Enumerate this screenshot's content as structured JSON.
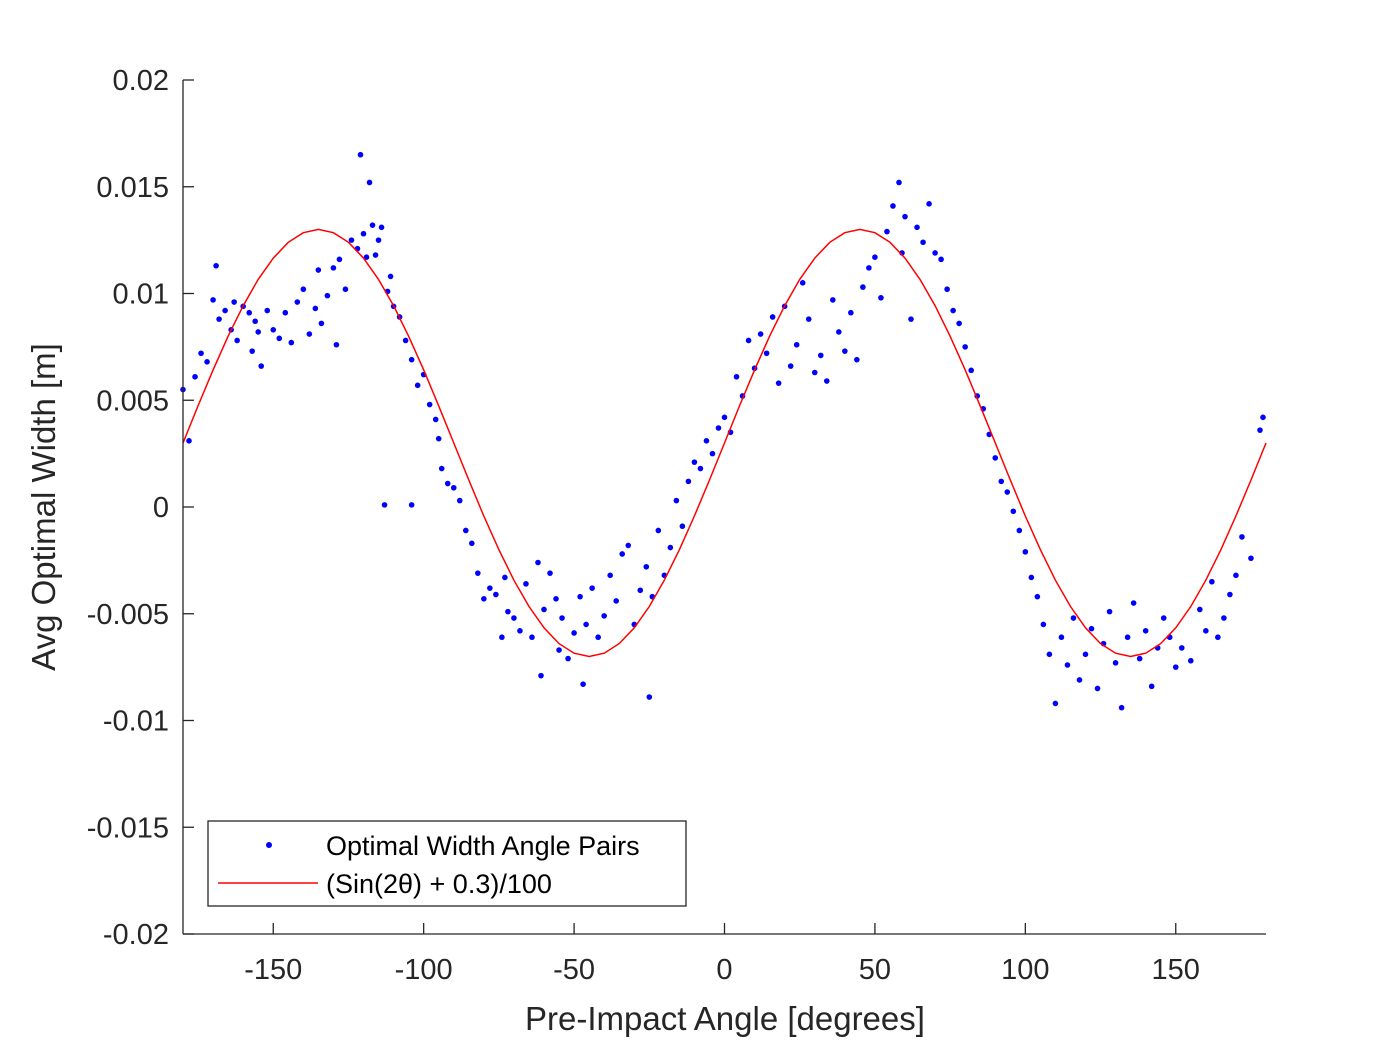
{
  "chart_data": {
    "type": "scatter",
    "xlabel": "Pre-Impact Angle [degrees]",
    "ylabel": "Avg Optimal Width [m]",
    "xlim": [
      -180,
      180
    ],
    "ylim": [
      -0.02,
      0.02
    ],
    "xticks": [
      -150,
      -100,
      -50,
      0,
      50,
      100,
      150
    ],
    "xtick_labels": [
      "-150",
      "-100",
      "-50",
      "0",
      "50",
      "100",
      "150"
    ],
    "yticks": [
      -0.02,
      -0.015,
      -0.01,
      -0.005,
      0,
      0.005,
      0.01,
      0.015,
      0.02
    ],
    "ytick_labels": [
      "-0.02",
      "-0.015",
      "-0.01",
      "-0.005",
      "0",
      "0.005",
      "0.01",
      "0.015",
      "0.02"
    ],
    "grid": false,
    "legend_position": "bottom-left",
    "series": [
      {
        "name": "Optimal Width Angle Pairs",
        "kind": "scatter",
        "color": "#0000ff",
        "x": [
          -180,
          -178,
          -176,
          -174,
          -172,
          -170,
          -169,
          -168,
          -166,
          -164,
          -163,
          -162,
          -160,
          -158,
          -157,
          -156,
          -155,
          -154,
          -152,
          -150,
          -148,
          -146,
          -144,
          -142,
          -140,
          -138,
          -136,
          -135,
          -134,
          -132,
          -130,
          -129,
          -128,
          -126,
          -124,
          -122,
          -121,
          -120,
          -119,
          -118,
          -117,
          -116,
          -115,
          -114,
          -112,
          -111,
          -110,
          -108,
          -106,
          -104,
          -102,
          -100,
          -98,
          -96,
          -95,
          -94,
          -92,
          -90,
          -88,
          -86,
          -84,
          -82,
          -80,
          -78,
          -76,
          -74,
          -73,
          -72,
          -70,
          -68,
          -66,
          -64,
          -62,
          -61,
          -60,
          -58,
          -56,
          -55,
          -54,
          -52,
          -50,
          -48,
          -47,
          -46,
          -44,
          -42,
          -40,
          -38,
          -36,
          -34,
          -32,
          -30,
          -28,
          -26,
          -25,
          -24,
          -22,
          -20,
          -18,
          -16,
          -14,
          -12,
          -10,
          -8,
          -6,
          -4,
          -2,
          0,
          2,
          4,
          6,
          8,
          10,
          12,
          14,
          16,
          18,
          20,
          22,
          24,
          26,
          28,
          30,
          32,
          34,
          36,
          38,
          40,
          42,
          44,
          46,
          48,
          50,
          52,
          54,
          56,
          58,
          59,
          60,
          62,
          64,
          66,
          68,
          70,
          72,
          74,
          76,
          78,
          80,
          82,
          84,
          86,
          88,
          90,
          92,
          94,
          96,
          98,
          100,
          102,
          104,
          106,
          108,
          110,
          112,
          114,
          116,
          118,
          120,
          122,
          124,
          126,
          128,
          130,
          132,
          134,
          136,
          138,
          140,
          142,
          144,
          146,
          148,
          150,
          152,
          155,
          158,
          160,
          162,
          164,
          166,
          168,
          170,
          172,
          175,
          178,
          179,
          -113,
          -104
        ],
        "y": [
          0.0055,
          0.0031,
          0.0061,
          0.0072,
          0.0068,
          0.0097,
          0.0113,
          0.0088,
          0.0092,
          0.0083,
          0.0096,
          0.0078,
          0.0094,
          0.0091,
          0.0073,
          0.0087,
          0.0082,
          0.0066,
          0.0092,
          0.0083,
          0.0079,
          0.0091,
          0.0077,
          0.0096,
          0.0102,
          0.0081,
          0.0093,
          0.0111,
          0.0086,
          0.0099,
          0.0112,
          0.0076,
          0.0116,
          0.0102,
          0.0125,
          0.0121,
          0.0165,
          0.0128,
          0.0117,
          0.0152,
          0.0132,
          0.0118,
          0.0125,
          0.0131,
          0.0101,
          0.0108,
          0.0094,
          0.0089,
          0.0078,
          0.0069,
          0.0057,
          0.0062,
          0.0048,
          0.0041,
          0.0032,
          0.0018,
          0.0011,
          0.0009,
          0.0003,
          -0.0011,
          -0.0017,
          -0.0031,
          -0.0043,
          -0.0038,
          -0.0041,
          -0.0061,
          -0.0033,
          -0.0049,
          -0.0052,
          -0.0058,
          -0.0036,
          -0.0061,
          -0.0026,
          -0.0079,
          -0.0048,
          -0.0031,
          -0.0043,
          -0.0067,
          -0.0052,
          -0.0071,
          -0.0059,
          -0.0042,
          -0.0083,
          -0.0055,
          -0.0038,
          -0.0061,
          -0.0051,
          -0.0032,
          -0.0044,
          -0.0022,
          -0.0018,
          -0.0055,
          -0.0039,
          -0.0028,
          -0.0089,
          -0.0042,
          -0.0011,
          -0.0032,
          -0.0019,
          0.0003,
          -0.0009,
          0.0012,
          0.0021,
          0.0018,
          0.0031,
          0.0025,
          0.0037,
          0.0042,
          0.0035,
          0.0061,
          0.0052,
          0.0078,
          0.0065,
          0.0081,
          0.0072,
          0.0089,
          0.0058,
          0.0094,
          0.0066,
          0.0076,
          0.0105,
          0.0088,
          0.0063,
          0.0071,
          0.0059,
          0.0097,
          0.0082,
          0.0073,
          0.0091,
          0.0069,
          0.0103,
          0.0112,
          0.0117,
          0.0098,
          0.0129,
          0.0141,
          0.0152,
          0.0119,
          0.0136,
          0.0088,
          0.0131,
          0.0124,
          0.0142,
          0.0119,
          0.0116,
          0.0102,
          0.0092,
          0.0086,
          0.0075,
          0.0064,
          0.0052,
          0.0046,
          0.0034,
          0.0023,
          0.0012,
          0.0007,
          -0.0002,
          -0.0011,
          -0.0021,
          -0.0033,
          -0.0042,
          -0.0055,
          -0.0069,
          -0.0092,
          -0.0061,
          -0.0074,
          -0.0052,
          -0.0081,
          -0.0069,
          -0.0057,
          -0.0085,
          -0.0064,
          -0.0049,
          -0.0073,
          -0.0094,
          -0.0061,
          -0.0045,
          -0.0071,
          -0.0058,
          -0.0084,
          -0.0066,
          -0.0052,
          -0.0061,
          -0.0075,
          -0.0066,
          -0.0072,
          -0.0048,
          -0.0058,
          -0.0035,
          -0.0061,
          -0.0052,
          -0.0041,
          -0.0032,
          -0.0014,
          -0.0024,
          0.0036,
          0.0042,
          0.0001,
          0.0001
        ]
      },
      {
        "name": "(Sin(2θ) + 0.3)/100",
        "kind": "line",
        "color": "#ff0000",
        "x": [
          -180,
          -175,
          -170,
          -165,
          -160,
          -155,
          -150,
          -145,
          -140,
          -135,
          -130,
          -125,
          -120,
          -115,
          -110,
          -105,
          -100,
          -95,
          -90,
          -85,
          -80,
          -75,
          -70,
          -65,
          -60,
          -55,
          -50,
          -45,
          -40,
          -35,
          -30,
          -25,
          -20,
          -15,
          -10,
          -5,
          0,
          5,
          10,
          15,
          20,
          25,
          30,
          35,
          40,
          45,
          50,
          55,
          60,
          65,
          70,
          75,
          80,
          85,
          90,
          95,
          100,
          105,
          110,
          115,
          120,
          125,
          130,
          135,
          140,
          145,
          150,
          155,
          160,
          165,
          170,
          175,
          180
        ],
        "y": [
          0.003,
          0.004736,
          0.00642,
          0.008,
          0.009428,
          0.01066,
          0.01166,
          0.0124,
          0.01285,
          0.013,
          0.01285,
          0.0124,
          0.01166,
          0.01066,
          0.009428,
          0.008,
          0.00642,
          0.004736,
          0.003,
          0.001264,
          -0.00042,
          -0.002,
          -0.003428,
          -0.00466,
          -0.00566,
          -0.0064,
          -0.00685,
          -0.007,
          -0.00685,
          -0.0064,
          -0.00566,
          -0.00466,
          -0.003428,
          -0.002,
          -0.00042,
          0.001264,
          0.003,
          0.004736,
          0.00642,
          0.008,
          0.009428,
          0.01066,
          0.01166,
          0.0124,
          0.01285,
          0.013,
          0.01285,
          0.0124,
          0.01166,
          0.01066,
          0.009428,
          0.008,
          0.00642,
          0.004736,
          0.003,
          0.001264,
          -0.00042,
          -0.002,
          -0.003428,
          -0.00466,
          -0.00566,
          -0.0064,
          -0.00685,
          -0.007,
          -0.00685,
          -0.0064,
          -0.00566,
          -0.00466,
          -0.003428,
          -0.002,
          -0.00042,
          0.001264,
          0.003
        ]
      }
    ]
  }
}
